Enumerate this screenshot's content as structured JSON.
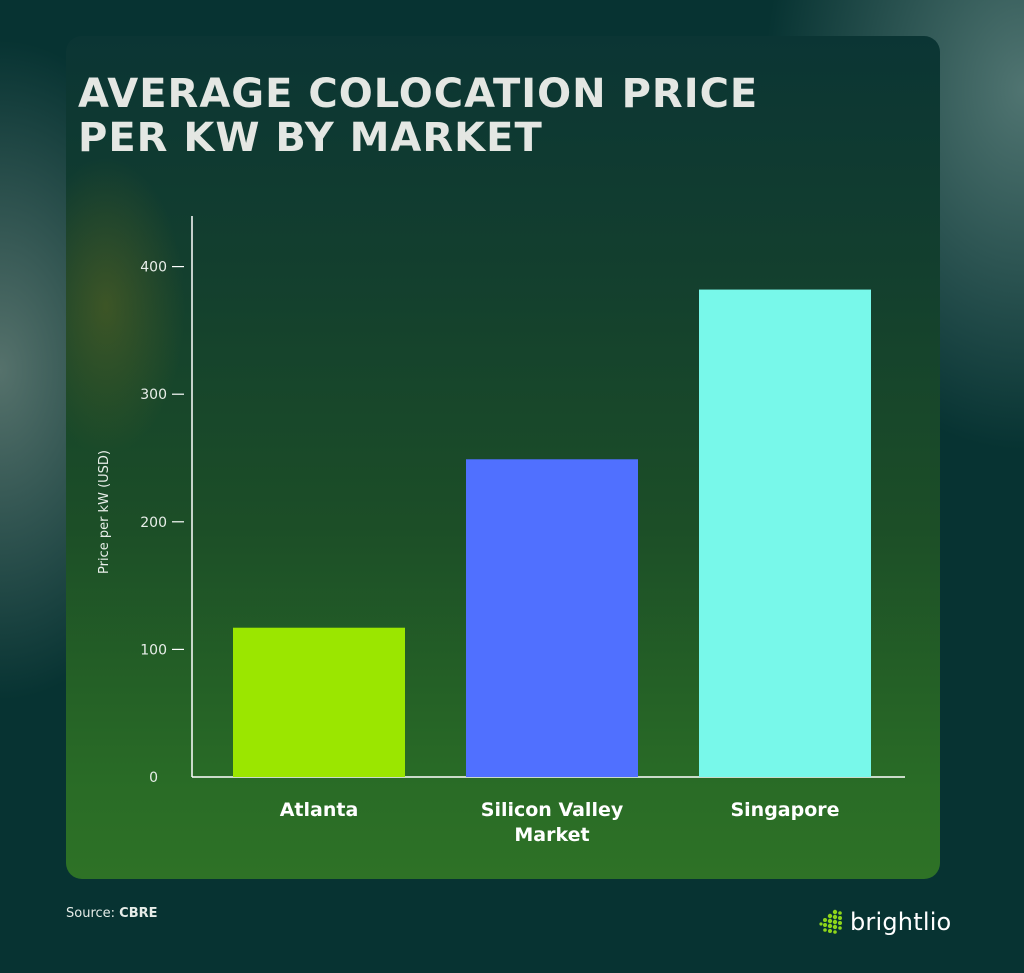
{
  "title_lines": [
    "AVERAGE COLOCATION PRICE",
    "PER KW BY MARKET"
  ],
  "source": {
    "label": "Source:",
    "value": "CBRE"
  },
  "brand": {
    "name": "brightlio",
    "logo_icon": "dot-grid-logo-icon",
    "logo_color": "#8fd61a"
  },
  "chart_data": {
    "type": "bar",
    "title": "AVERAGE COLOCATION PRICE PER KW BY MARKET",
    "ylabel": "Price per kW (USD)",
    "xlabel": "",
    "categories": [
      [
        "Atlanta"
      ],
      [
        "Silicon Valley",
        "Market"
      ],
      [
        "Singapore"
      ]
    ],
    "values": [
      117,
      249,
      382
    ],
    "colors": [
      "#9be600",
      "#5070ff",
      "#78f8ea"
    ],
    "ylim": [
      0,
      440
    ],
    "yticks": [
      0,
      100,
      200,
      300,
      400
    ],
    "grid": false,
    "legend": "none"
  }
}
